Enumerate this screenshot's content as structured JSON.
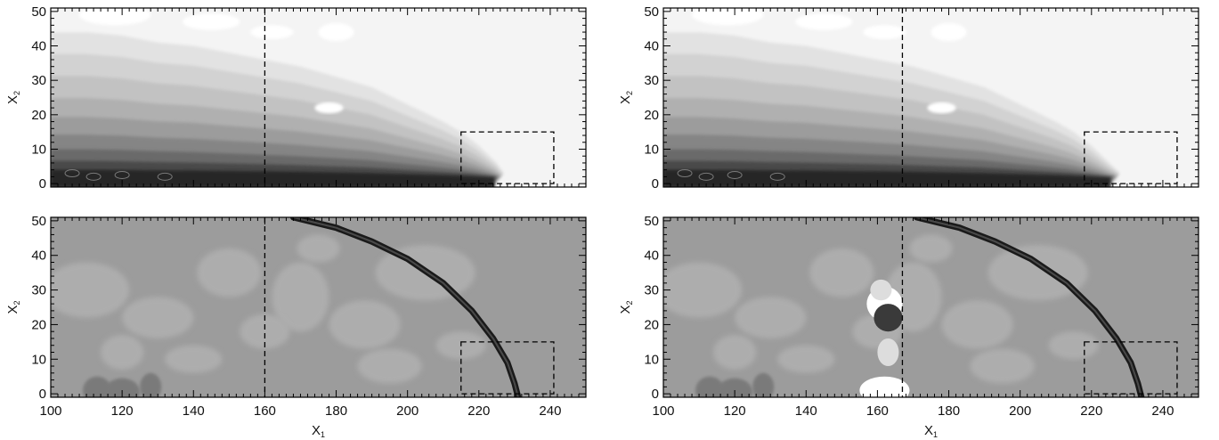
{
  "chart_data": [
    {
      "type": "heatmap",
      "panel": "top-left",
      "colormap": "white-to-black (upper field)",
      "xlim": [
        100,
        250
      ],
      "ylim": [
        -1,
        51
      ],
      "xticks": [
        100,
        120,
        140,
        160,
        180,
        200,
        220,
        240
      ],
      "yticks": [
        0,
        10,
        20,
        30,
        40,
        50
      ],
      "show_xtick_labels": false,
      "ylabel": "X",
      "ylabel_sub": "2",
      "dashed_vertical_x": 160,
      "dashed_box": {
        "x0": 215,
        "x1": 241,
        "y0": 0,
        "y1": 15
      },
      "front_profile": [
        [
          100,
          44
        ],
        [
          110,
          44
        ],
        [
          120,
          43
        ],
        [
          130,
          41
        ],
        [
          140,
          40
        ],
        [
          150,
          38
        ],
        [
          160,
          36
        ],
        [
          170,
          34
        ],
        [
          180,
          31
        ],
        [
          190,
          28
        ],
        [
          200,
          23
        ],
        [
          210,
          18
        ],
        [
          215,
          15
        ],
        [
          220,
          11
        ],
        [
          225,
          6
        ],
        [
          227,
          3
        ],
        [
          226,
          0
        ]
      ]
    },
    {
      "type": "heatmap",
      "panel": "top-right",
      "colormap": "white-to-black (upper field)",
      "xlim": [
        100,
        250
      ],
      "ylim": [
        -1,
        51
      ],
      "xticks": [
        100,
        120,
        140,
        160,
        180,
        200,
        220,
        240
      ],
      "yticks": [
        0,
        10,
        20,
        30,
        40,
        50
      ],
      "show_xtick_labels": false,
      "ylabel": "X",
      "ylabel_sub": "2",
      "dashed_vertical_x": 167,
      "dashed_box": {
        "x0": 218,
        "x1": 244,
        "y0": 0,
        "y1": 15
      },
      "front_profile": [
        [
          100,
          44
        ],
        [
          110,
          44
        ],
        [
          120,
          43
        ],
        [
          130,
          41
        ],
        [
          140,
          40
        ],
        [
          150,
          38
        ],
        [
          160,
          36
        ],
        [
          170,
          34
        ],
        [
          180,
          31
        ],
        [
          190,
          28
        ],
        [
          200,
          23
        ],
        [
          210,
          18
        ],
        [
          215,
          15
        ],
        [
          220,
          11
        ],
        [
          225,
          6
        ],
        [
          228,
          3
        ],
        [
          227,
          0
        ]
      ]
    },
    {
      "type": "heatmap",
      "panel": "bottom-left",
      "colormap": "gray (lower field)",
      "xlim": [
        100,
        250
      ],
      "ylim": [
        -1,
        51
      ],
      "xticks": [
        100,
        120,
        140,
        160,
        180,
        200,
        220,
        240
      ],
      "yticks": [
        0,
        10,
        20,
        30,
        40,
        50
      ],
      "show_xtick_labels": true,
      "xlabel": "X",
      "xlabel_sub": "1",
      "ylabel": "X",
      "ylabel_sub": "2",
      "dashed_vertical_x": 160,
      "dashed_box": {
        "x0": 215,
        "x1": 241,
        "y0": 0,
        "y1": 15
      },
      "shock_arc": [
        [
          168,
          51
        ],
        [
          180,
          48
        ],
        [
          190,
          44
        ],
        [
          200,
          39
        ],
        [
          210,
          32
        ],
        [
          218,
          24
        ],
        [
          224,
          16
        ],
        [
          228,
          9
        ],
        [
          230,
          3
        ],
        [
          231,
          -1
        ]
      ]
    },
    {
      "type": "heatmap",
      "panel": "bottom-right",
      "colormap": "gray (lower field)",
      "xlim": [
        100,
        250
      ],
      "ylim": [
        -1,
        51
      ],
      "xticks": [
        100,
        120,
        140,
        160,
        180,
        200,
        220,
        240
      ],
      "yticks": [
        0,
        10,
        20,
        30,
        40,
        50
      ],
      "show_xtick_labels": true,
      "xlabel": "X",
      "xlabel_sub": "1",
      "ylabel": "X",
      "ylabel_sub": "2",
      "dashed_vertical_x": 167,
      "dashed_box": {
        "x0": 218,
        "x1": 244,
        "y0": 0,
        "y1": 15
      },
      "shock_arc": [
        [
          171,
          51
        ],
        [
          183,
          48
        ],
        [
          193,
          44
        ],
        [
          203,
          39
        ],
        [
          213,
          32
        ],
        [
          221,
          24
        ],
        [
          227,
          16
        ],
        [
          231,
          9
        ],
        [
          233,
          3
        ],
        [
          234,
          -1
        ]
      ]
    }
  ]
}
